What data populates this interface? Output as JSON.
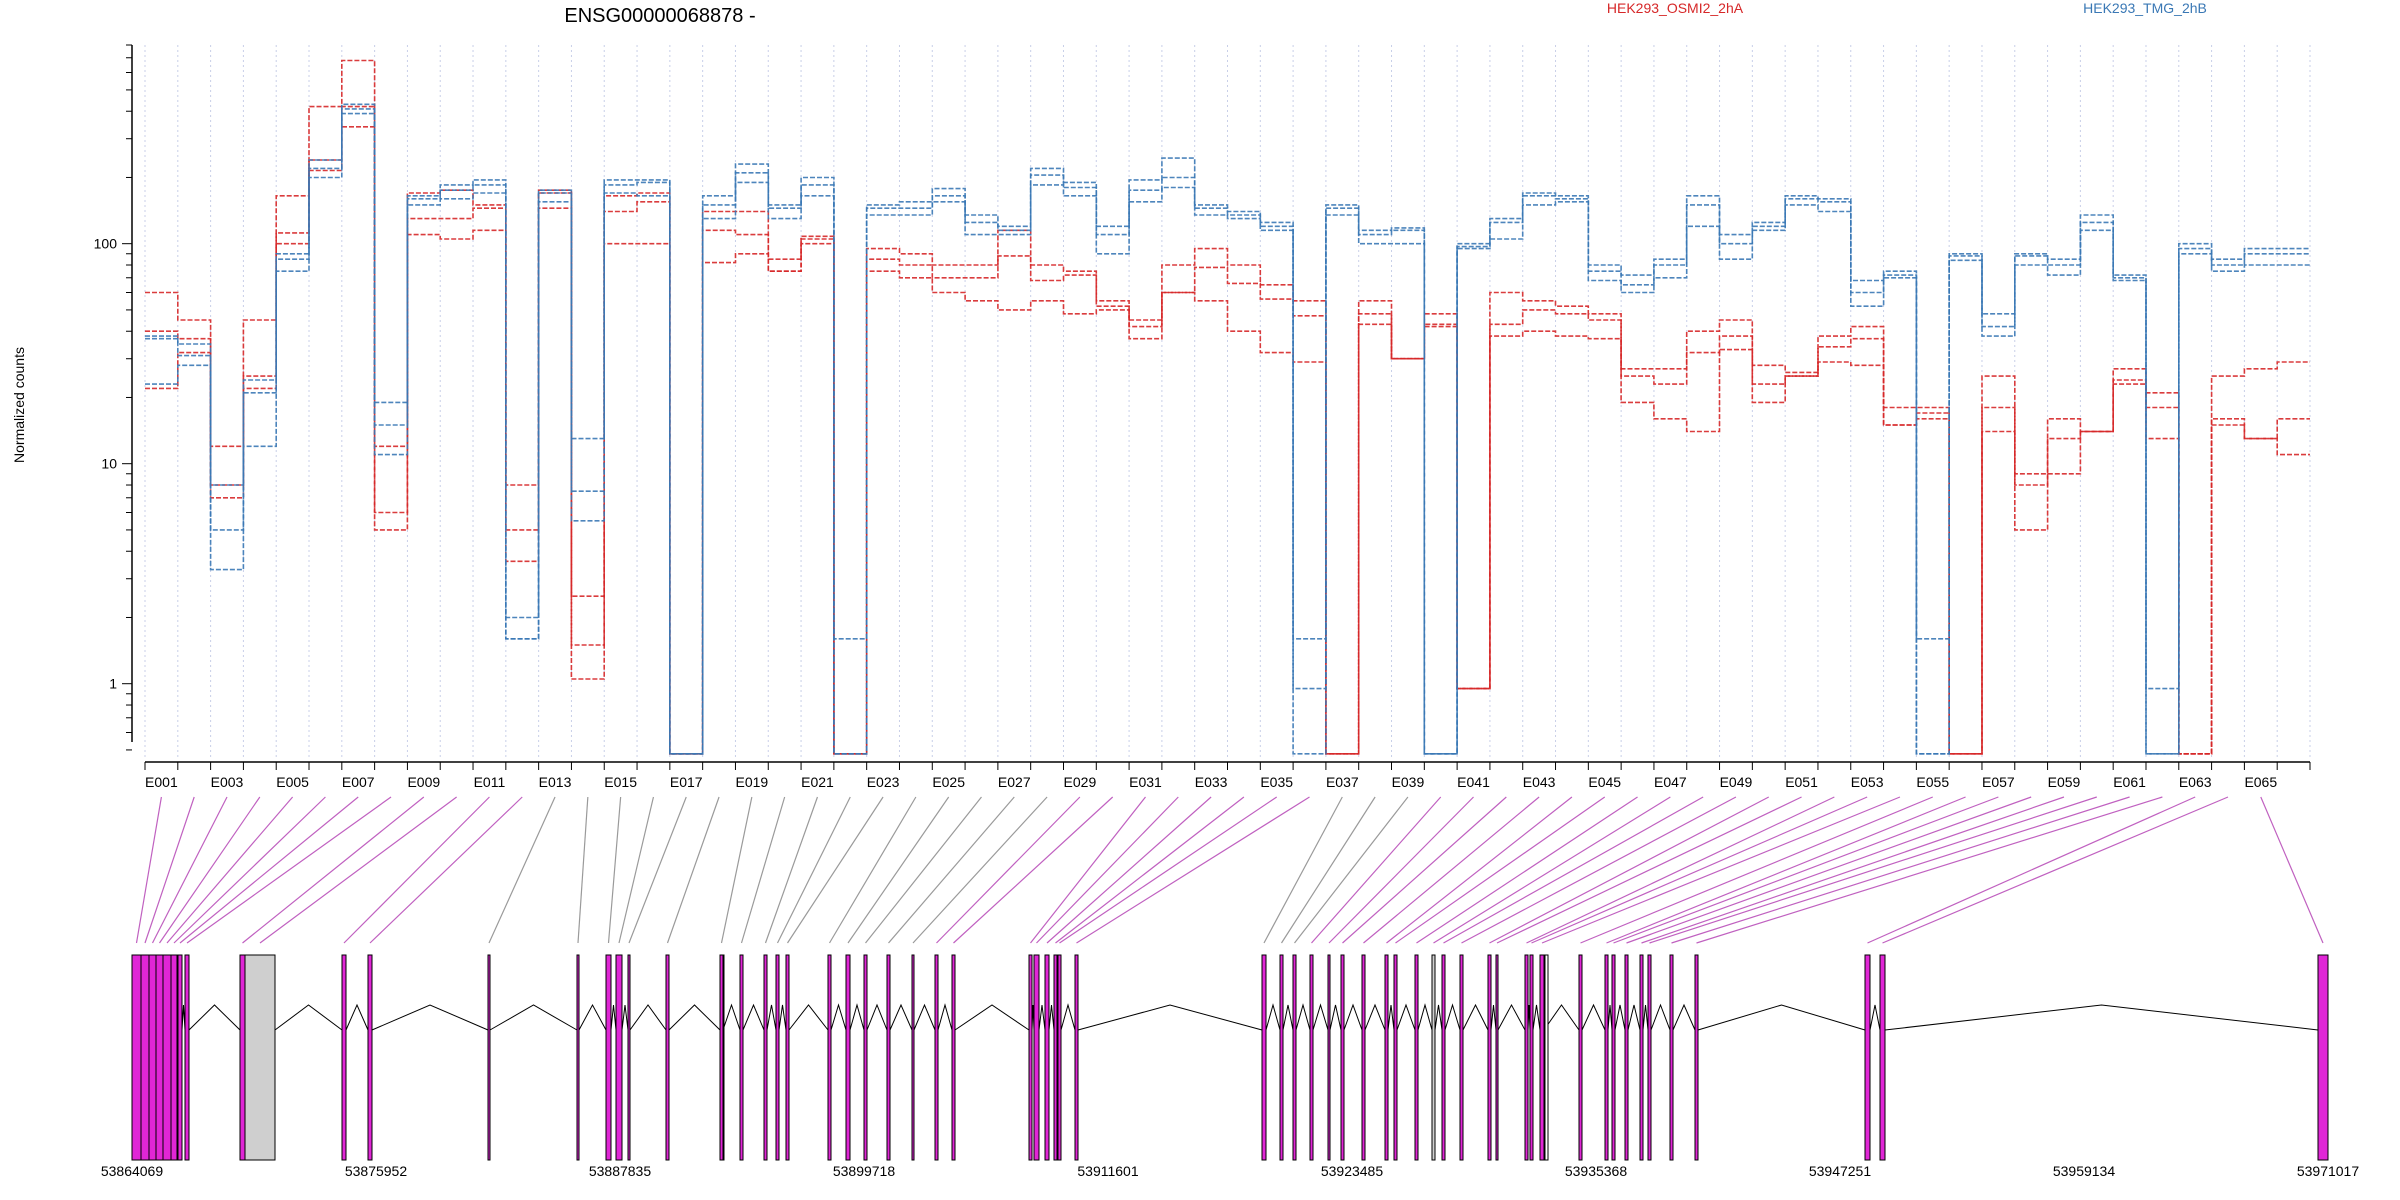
{
  "chart_data": {
    "type": "line",
    "title": "ENSG00000068878 -",
    "ylabel": "Normalized counts",
    "yscale": "log",
    "ylim": [
      0.45,
      800
    ],
    "y_ticks": [
      1,
      10,
      100
    ],
    "y_tick_labels": [
      "1",
      "10",
      "100"
    ],
    "line_style": "dashed",
    "grid": true,
    "exons": [
      "E001",
      "E002",
      "E003",
      "E004",
      "E005",
      "E006",
      "E007",
      "E008",
      "E009",
      "E010",
      "E011",
      "E012",
      "E013",
      "E014",
      "E015",
      "E016",
      "E017",
      "E018",
      "E019",
      "E020",
      "E021",
      "E022",
      "E023",
      "E024",
      "E025",
      "E026",
      "E027",
      "E028",
      "E029",
      "E030",
      "E031",
      "E032",
      "E033",
      "E034",
      "E035",
      "E036",
      "E037",
      "E038",
      "E039",
      "E040",
      "E041",
      "E042",
      "E043",
      "E044",
      "E045",
      "E046",
      "E047",
      "E048",
      "E049",
      "E050",
      "E051",
      "E052",
      "E053",
      "E054",
      "E055",
      "E056",
      "E057",
      "E058",
      "E059",
      "E060",
      "E061",
      "E062",
      "E063",
      "E064",
      "E065",
      "E066"
    ],
    "x_tick_labels": [
      "E001",
      "E003",
      "E005",
      "E007",
      "E009",
      "E011",
      "E013",
      "E015",
      "E017",
      "E019",
      "E021",
      "E023",
      "E025",
      "E027",
      "E029",
      "E031",
      "E033",
      "E035",
      "E037",
      "E039",
      "E041",
      "E043",
      "E045",
      "E047",
      "E049",
      "E051",
      "E053",
      "E055",
      "E057",
      "E059",
      "E061",
      "E063",
      "E065"
    ],
    "groups": [
      {
        "name": "HEK293_OSMI2_2hA",
        "color": "#d62728",
        "series": [
          {
            "values": [
              60,
              45,
              12,
              45,
              165,
              420,
              680,
              6,
              170,
              175,
              150,
              8,
              175,
              2.5,
              165,
              170,
              0.48,
              140,
              140,
              85,
              108,
              0.48,
              95,
              90,
              80,
              80,
              115,
              80,
              75,
              55,
              45,
              80,
              95,
              80,
              65,
              55,
              0.48,
              55,
              30,
              48,
              0.95,
              60,
              55,
              52,
              48,
              27,
              27,
              40,
              45,
              28,
              26,
              38,
              42,
              18,
              18,
              0.48,
              25,
              9,
              16,
              14,
              27,
              21,
              0.48,
              25,
              27,
              29
            ]
          },
          {
            "values": [
              40,
              37,
              8,
              25,
              112,
              240,
              420,
              12,
              130,
              130,
              145,
              5,
              170,
              1.05,
              140,
              155,
              0.48,
              115,
              110,
              75,
              105,
              0.48,
              85,
              80,
              70,
              70,
              88,
              68,
              72,
              52,
              42,
              60,
              78,
              66,
              56,
              47,
              0.48,
              48,
              30,
              43,
              0.95,
              43,
              50,
              48,
              45,
              25,
              23,
              32,
              38,
              23,
              25,
              34,
              37,
              15,
              17,
              0.48,
              18,
              8,
              13,
              14,
              24,
              18,
              0.48,
              16,
              13,
              16
            ]
          },
          {
            "values": [
              22,
              32,
              7,
              22,
              100,
              215,
              340,
              5,
              110,
              105,
              115,
              3.6,
              145,
              1.5,
              100,
              100,
              0.48,
              82,
              90,
              75,
              100,
              0.48,
              75,
              70,
              60,
              55,
              50,
              55,
              48,
              50,
              37,
              60,
              55,
              40,
              32,
              29,
              0.48,
              43,
              30,
              42,
              0.95,
              38,
              40,
              38,
              37,
              19,
              16,
              14,
              33,
              19,
              25,
              29,
              28,
              15,
              16,
              0.48,
              14,
              5,
              9,
              14,
              23,
              13,
              0.48,
              15,
              13,
              11
            ]
          }
        ]
      },
      {
        "name": "HEK293_TMG_2hB",
        "color": "#3a78b5",
        "series": [
          {
            "values": [
              38,
              35,
              8,
              24,
              90,
              240,
              430,
              19,
              165,
              185,
              195,
              2,
              175,
              13,
              195,
              195,
              0.48,
              165,
              230,
              150,
              200,
              1.6,
              150,
              155,
              178,
              135,
              120,
              220,
              190,
              120,
              195,
              245,
              150,
              140,
              125,
              1.6,
              150,
              115,
              118,
              0.48,
              100,
              130,
              170,
              165,
              80,
              72,
              85,
              165,
              110,
              125,
              165,
              160,
              68,
              75,
              1.6,
              90,
              48,
              90,
              85,
              135,
              72,
              0.48,
              100,
              85,
              95,
              95
            ]
          },
          {
            "values": [
              37,
              31,
              5,
              21,
              85,
              220,
              410,
              15,
              160,
              175,
              185,
              1.6,
              170,
              7.5,
              185,
              190,
              0.48,
              150,
              210,
              145,
              185,
              0.48,
              145,
              145,
              165,
              125,
              115,
              205,
              180,
              110,
              175,
              200,
              145,
              135,
              120,
              0.95,
              145,
              110,
              115,
              0.48,
              97,
              125,
              165,
              160,
              75,
              65,
              80,
              150,
              100,
              120,
              160,
              155,
              60,
              72,
              0.48,
              88,
              42,
              88,
              80,
              125,
              70,
              0.95,
              95,
              80,
              90,
              90
            ]
          },
          {
            "values": [
              23,
              28,
              3.3,
              12,
              75,
              200,
              390,
              11,
              150,
              160,
              170,
              1.6,
              155,
              5.5,
              170,
              165,
              0.48,
              130,
              190,
              130,
              165,
              0.48,
              135,
              135,
              155,
              110,
              110,
              185,
              165,
              90,
              155,
              180,
              135,
              130,
              115,
              0.48,
              135,
              100,
              100,
              0.48,
              95,
              105,
              150,
              155,
              68,
              60,
              70,
              120,
              85,
              115,
              150,
              140,
              52,
              70,
              0.48,
              84,
              38,
              80,
              72,
              115,
              68,
              0.48,
              90,
              75,
              80,
              80
            ]
          }
        ]
      }
    ],
    "genome_axis": {
      "labels": [
        "53864069",
        "53875952",
        "53887835",
        "53899718",
        "53911601",
        "53923485",
        "53935368",
        "53947251",
        "53959134",
        "53971017"
      ]
    }
  }
}
